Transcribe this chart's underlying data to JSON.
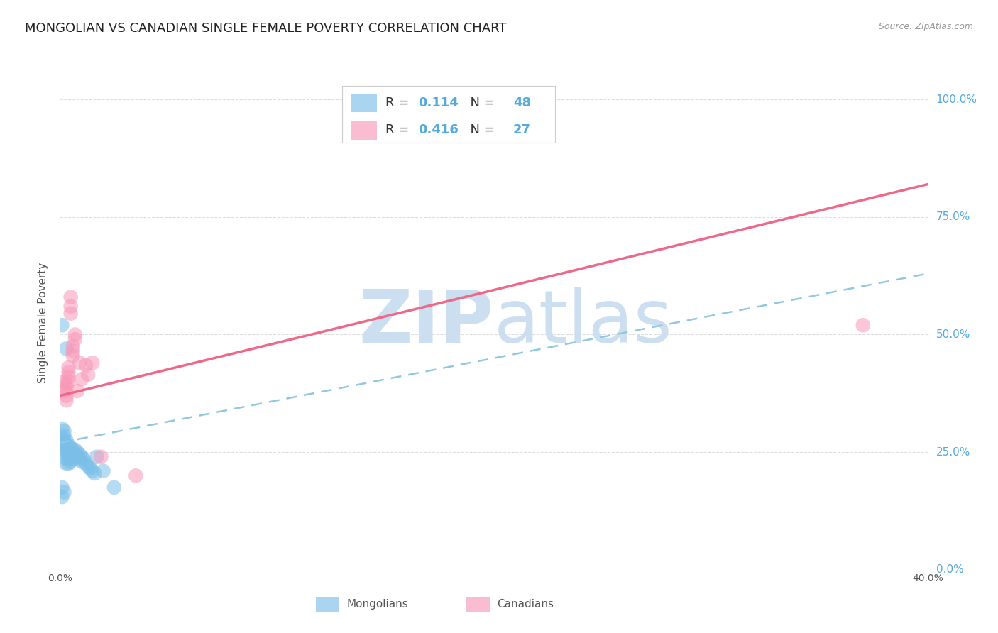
{
  "title": "MONGOLIAN VS CANADIAN SINGLE FEMALE POVERTY CORRELATION CHART",
  "source": "Source: ZipAtlas.com",
  "ylabel": "Single Female Poverty",
  "right_yticks": [
    0.0,
    0.25,
    0.5,
    0.75,
    1.0
  ],
  "right_yticklabels": [
    "0.0%",
    "25.0%",
    "50.0%",
    "75.0%",
    "100.0%"
  ],
  "xlim": [
    0.0,
    0.4
  ],
  "ylim": [
    0.0,
    1.05
  ],
  "mongolian_R": 0.114,
  "mongolian_N": 48,
  "canadian_R": 0.416,
  "canadian_N": 27,
  "mongolian_color": "#7BBFE8",
  "canadian_color": "#F898B8",
  "mongolian_line_color": "#90C8E0",
  "canadian_line_color": "#F06888",
  "grid_color": "#DDDDDD",
  "background_color": "#FFFFFF",
  "watermark_color": "#CCDFF0",
  "blue_label_color": "#55AADD",
  "title_fontsize": 13,
  "axis_label_fontsize": 11,
  "mongolian_x": [
    0.001,
    0.001,
    0.001,
    0.001,
    0.002,
    0.002,
    0.002,
    0.002,
    0.002,
    0.003,
    0.003,
    0.003,
    0.003,
    0.003,
    0.003,
    0.004,
    0.004,
    0.004,
    0.004,
    0.004,
    0.005,
    0.005,
    0.005,
    0.005,
    0.006,
    0.006,
    0.006,
    0.007,
    0.007,
    0.008,
    0.008,
    0.009,
    0.009,
    0.01,
    0.01,
    0.011,
    0.012,
    0.013,
    0.014,
    0.015,
    0.016,
    0.017,
    0.02,
    0.025,
    0.003,
    0.001,
    0.002,
    0.001
  ],
  "mongolian_y": [
    0.52,
    0.3,
    0.28,
    0.27,
    0.295,
    0.285,
    0.275,
    0.265,
    0.255,
    0.275,
    0.265,
    0.255,
    0.245,
    0.235,
    0.225,
    0.265,
    0.255,
    0.245,
    0.235,
    0.225,
    0.26,
    0.25,
    0.24,
    0.23,
    0.255,
    0.245,
    0.235,
    0.255,
    0.245,
    0.25,
    0.24,
    0.245,
    0.235,
    0.24,
    0.23,
    0.235,
    0.225,
    0.22,
    0.215,
    0.21,
    0.205,
    0.24,
    0.21,
    0.175,
    0.47,
    0.175,
    0.165,
    0.155
  ],
  "canadian_x": [
    0.002,
    0.002,
    0.003,
    0.003,
    0.003,
    0.003,
    0.004,
    0.004,
    0.004,
    0.004,
    0.005,
    0.005,
    0.005,
    0.006,
    0.006,
    0.006,
    0.007,
    0.007,
    0.008,
    0.009,
    0.01,
    0.012,
    0.013,
    0.015,
    0.019,
    0.035,
    0.37
  ],
  "canadian_y": [
    0.4,
    0.38,
    0.395,
    0.385,
    0.37,
    0.36,
    0.43,
    0.42,
    0.41,
    0.4,
    0.58,
    0.56,
    0.545,
    0.475,
    0.465,
    0.455,
    0.5,
    0.49,
    0.38,
    0.44,
    0.405,
    0.435,
    0.415,
    0.44,
    0.24,
    0.2,
    0.52
  ]
}
